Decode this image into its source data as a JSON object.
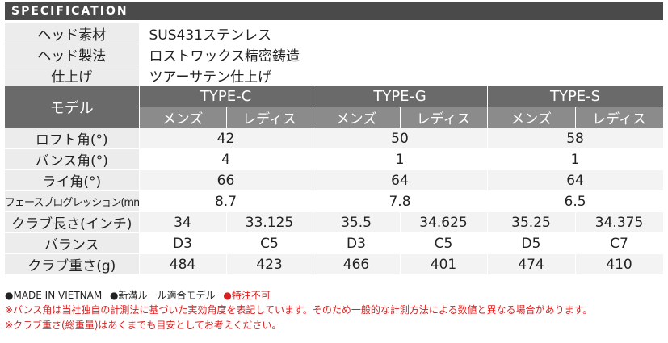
{
  "header": {
    "title": "SPECIFICATION"
  },
  "head_rows": [
    {
      "label": "ヘッド素材",
      "value": "SUS431ステンレス"
    },
    {
      "label": "ヘッド製法",
      "value": "ロストワックス精密鋳造"
    },
    {
      "label": "仕上げ",
      "value": "ツアーサテン仕上げ"
    }
  ],
  "model": {
    "label": "モデル",
    "types": [
      "TYPE-C",
      "TYPE-G",
      "TYPE-S"
    ],
    "subs": [
      "メンズ",
      "レディス",
      "メンズ",
      "レディス",
      "メンズ",
      "レディス"
    ]
  },
  "shared_rows": [
    {
      "label": "ロフト角(°)",
      "values": [
        "42",
        "50",
        "58"
      ]
    },
    {
      "label": "バンス角(°)",
      "values": [
        "4",
        "1",
        "1"
      ]
    },
    {
      "label": "ライ角(°)",
      "values": [
        "66",
        "64",
        "64"
      ]
    },
    {
      "label": "フェースプログレッション(mm)",
      "values": [
        "8.7",
        "7.8",
        "6.5"
      ]
    }
  ],
  "split_rows": [
    {
      "label": "クラブ長さ(インチ)",
      "values": [
        "34",
        "33.125",
        "35.5",
        "34.625",
        "35.25",
        "34.375"
      ]
    },
    {
      "label": "バランス",
      "values": [
        "D3",
        "C5",
        "D3",
        "C5",
        "D5",
        "C7"
      ]
    },
    {
      "label": "クラブ重さ(g)",
      "values": [
        "484",
        "423",
        "466",
        "401",
        "474",
        "410"
      ]
    }
  ],
  "footer": {
    "badges": [
      {
        "text": "MADE IN VIETNAM",
        "color": "#222222"
      },
      {
        "text": "新溝ルール適合モデル",
        "color": "#222222"
      },
      {
        "text": "特注不可",
        "color": "#d92020"
      }
    ],
    "note1": "※バンス角は当社独自の計測法に基づいた実効角度を表記しています。そのため一般的な計測方法による数値と異なる場合があります。",
    "note2": "※クラブ重さ(総重量)はあくまでも目安としてお考えください。"
  },
  "colors": {
    "header_bg": "#4a4a4a",
    "model_bg": "#6a6a6a",
    "sub_bg": "#8b8b8b",
    "accent_red": "#d92020"
  }
}
